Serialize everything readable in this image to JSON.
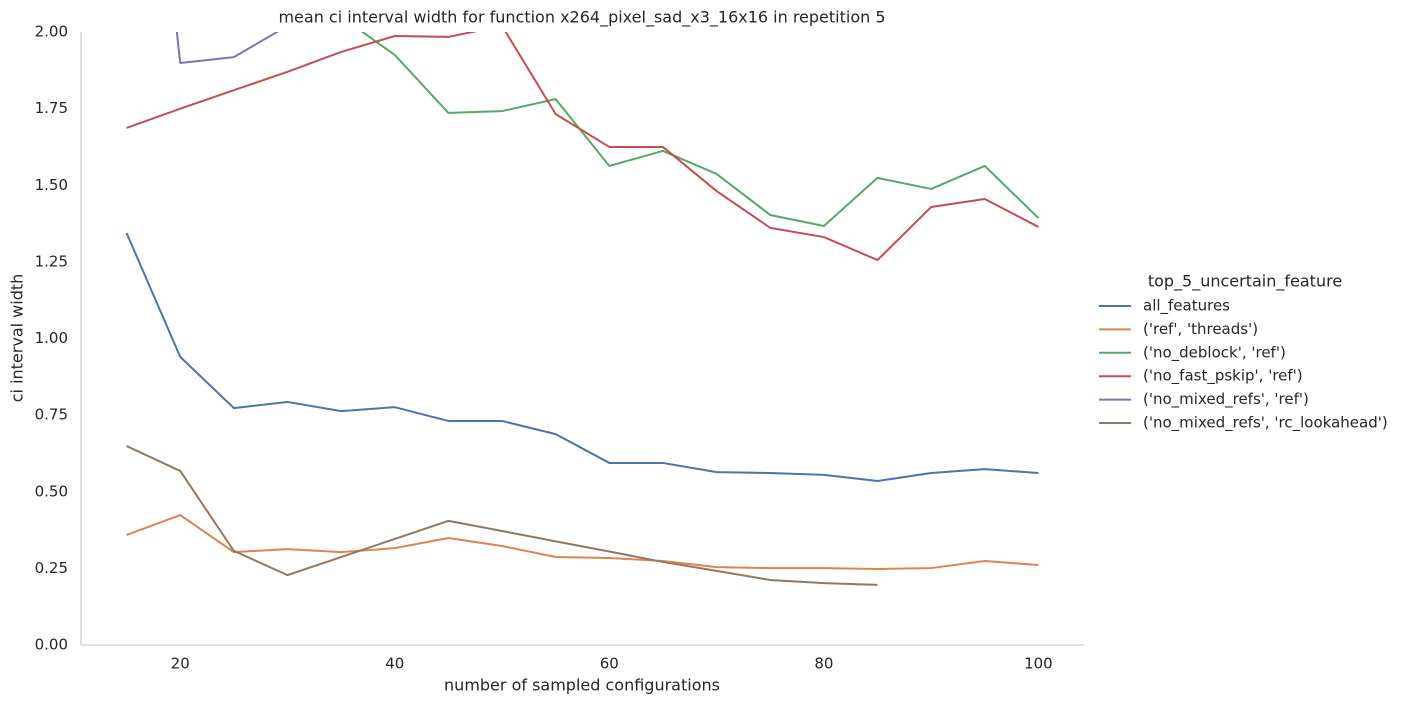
{
  "chart_data": {
    "type": "line",
    "title": "mean ci interval width for function x264_pixel_sad_x3_16x16 in repetition 5",
    "x_label": "number of sampled configurations",
    "y_label": "ci interval width",
    "legend_title": "top_5_uncertain_feature",
    "legend_position": "right",
    "grid": false,
    "x": [
      15,
      20,
      25,
      30,
      35,
      40,
      45,
      50,
      55,
      60,
      65,
      70,
      75,
      80,
      85,
      90,
      95,
      100
    ],
    "xlim": [
      10.75,
      104.25
    ],
    "xticks": [
      20,
      40,
      60,
      80,
      100
    ],
    "ylim": [
      0,
      2
    ],
    "yticks": [
      {
        "value": 0,
        "label": "0.00"
      },
      {
        "value": 0.25,
        "label": "0.25"
      },
      {
        "value": 0.5,
        "label": "0.50"
      },
      {
        "value": 0.75,
        "label": "0.75"
      },
      {
        "value": 1,
        "label": "1.00"
      },
      {
        "value": 1.25,
        "label": "1.25"
      },
      {
        "value": 1.5,
        "label": "1.50"
      },
      {
        "value": 1.75,
        "label": "1.75"
      },
      {
        "value": 2,
        "label": "2.00"
      }
    ],
    "series": [
      {
        "name": "all_features",
        "color": "#4c72b0",
        "values": [
          1.344,
          0.94,
          0.773,
          0.793,
          0.763,
          0.776,
          0.731,
          0.731,
          0.688,
          0.594,
          0.594,
          0.564,
          0.561,
          0.555,
          0.535,
          0.561,
          0.574,
          0.561
        ]
      },
      {
        "name": "('ref', 'threads')",
        "color": "#dd8452",
        "values": [
          0.359,
          0.424,
          0.303,
          0.313,
          0.303,
          0.316,
          0.349,
          0.323,
          0.287,
          0.284,
          0.274,
          0.254,
          0.251,
          0.251,
          0.248,
          0.251,
          0.274,
          0.261
        ]
      },
      {
        "name": "('no_deblock', 'ref')",
        "color": "#55a868",
        "values": [
          null,
          null,
          null,
          null,
          2.05,
          1.925,
          1.736,
          1.742,
          1.781,
          1.563,
          1.612,
          1.537,
          1.403,
          1.367,
          1.524,
          1.488,
          1.563,
          1.393
        ]
      },
      {
        "name": "('no_fast_pskip', 'ref')",
        "color": "#c44e52",
        "values": [
          1.687,
          1.75,
          1.81,
          1.87,
          1.935,
          1.987,
          1.984,
          2.02,
          1.732,
          1.625,
          1.625,
          1.481,
          1.361,
          1.331,
          1.256,
          1.429,
          1.455,
          1.364
        ]
      },
      {
        "name": "('no_mixed_refs', 'ref')",
        "color": "#8172b3",
        "values": [
          3.5,
          1.899,
          1.918,
          2.02,
          null,
          null,
          null,
          null,
          null,
          null,
          null,
          null,
          null,
          null,
          null,
          null,
          null,
          null
        ]
      },
      {
        "name": "('no_mixed_refs', 'rc_lookahead')",
        "color": "#937860",
        "values": [
          0.649,
          0.568,
          0.307,
          0.228,
          0.287,
          0.346,
          0.405,
          0.372,
          0.338,
          0.305,
          0.271,
          0.242,
          0.212,
          0.202,
          0.196,
          null,
          null,
          null
        ]
      }
    ]
  }
}
